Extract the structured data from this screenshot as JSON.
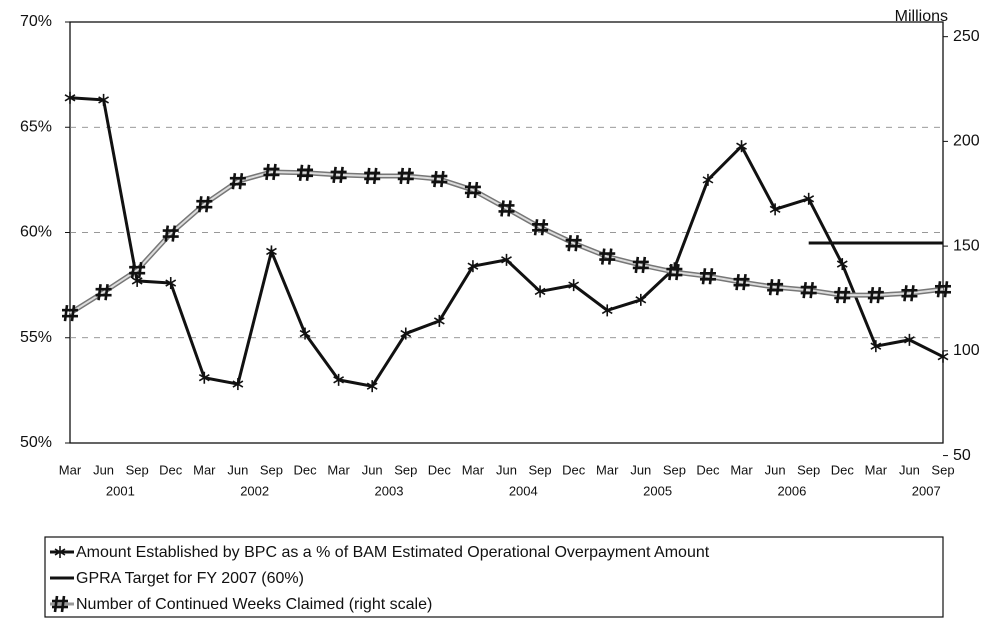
{
  "chart_data": {
    "type": "line",
    "y2_title": "Millions",
    "categories": [
      "Mar",
      "Jun",
      "Sep",
      "Dec",
      "Mar",
      "Jun",
      "Sep",
      "Dec",
      "Mar",
      "Jun",
      "Sep",
      "Dec",
      "Mar",
      "Jun",
      "Sep",
      "Dec",
      "Mar",
      "Jun",
      "Sep",
      "Dec",
      "Mar",
      "Jun",
      "Sep",
      "Dec",
      "Mar",
      "Jun",
      "Sep"
    ],
    "years": [
      null,
      "2001",
      null,
      null,
      null,
      "2002",
      null,
      null,
      null,
      "2003",
      null,
      null,
      null,
      "2004",
      null,
      null,
      null,
      "2005",
      null,
      null,
      null,
      "2006",
      null,
      null,
      null,
      "2007",
      null
    ],
    "ylim": [
      50,
      70
    ],
    "yticks": [
      {
        "value": 50,
        "label": "50%"
      },
      {
        "value": 55,
        "label": "55%"
      },
      {
        "value": 60,
        "label": "60%"
      },
      {
        "value": 65,
        "label": "65%"
      },
      {
        "value": 70,
        "label": "70%"
      }
    ],
    "y2lim": [
      56,
      257
    ],
    "y2ticks": [
      50,
      100,
      150,
      200,
      250
    ],
    "grid": true,
    "series": [
      {
        "name": "Amount Established by BPC as a % of BAM Estimated Operational Overpayment Amount",
        "color": "#111111",
        "marker": "asterisk",
        "values": [
          66.4,
          66.3,
          57.7,
          57.6,
          53.1,
          52.8,
          59.1,
          55.2,
          53.0,
          52.7,
          55.2,
          55.8,
          58.4,
          58.7,
          57.2,
          57.5,
          56.3,
          56.8,
          58.3,
          62.5,
          64.1,
          61.1,
          61.6,
          58.5,
          54.6,
          54.9,
          54.1
        ]
      },
      {
        "name": "GPRA Target for FY 2007 (60%)",
        "color": "#111111",
        "values": [
          null,
          null,
          null,
          null,
          null,
          null,
          null,
          null,
          null,
          null,
          null,
          null,
          null,
          null,
          null,
          null,
          null,
          null,
          null,
          null,
          null,
          null,
          59.5,
          59.5,
          59.5,
          59.5,
          59.5
        ]
      },
      {
        "name": "Number of Continued Weeks Claimed (right scale)",
        "color": "#999999",
        "marker": "hash",
        "axis": "y2",
        "values": [
          118,
          128,
          138.5,
          156,
          170,
          181,
          185.4,
          185,
          184,
          183.5,
          183.5,
          182,
          176.8,
          168,
          159,
          151.4,
          145,
          141,
          137.6,
          135.6,
          132.8,
          130.4,
          129,
          126.6,
          126.6,
          127.5,
          129.4
        ]
      }
    ]
  }
}
